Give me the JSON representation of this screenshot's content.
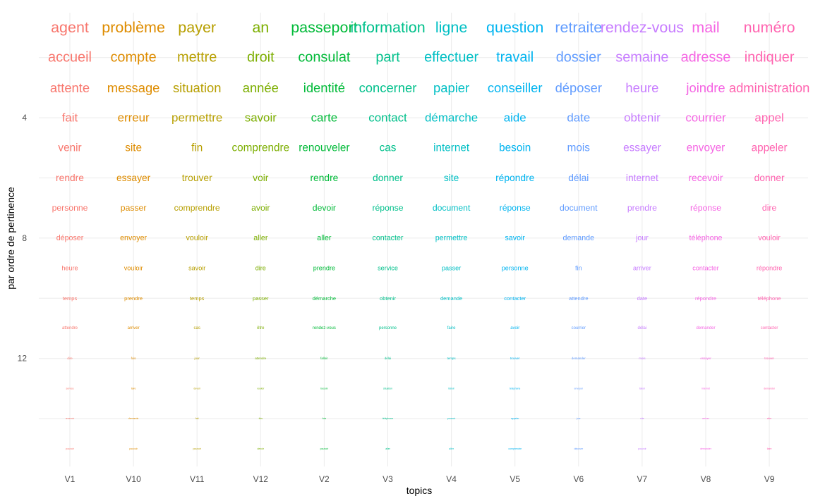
{
  "chart_data": {
    "type": "word-grid",
    "title": "",
    "xlabel": "topics",
    "ylabel": "par ordre de pertinence",
    "categories": [
      "V1",
      "V10",
      "V11",
      "V12",
      "V2",
      "V3",
      "V4",
      "V5",
      "V6",
      "V7",
      "V8",
      "V9"
    ],
    "y_ticks": [
      4,
      8,
      12
    ],
    "ylim": [
      0.5,
      15.5
    ],
    "grid": true,
    "colors": [
      "#F8766D",
      "#DE8C00",
      "#B79F00",
      "#7CAE00",
      "#00BA38",
      "#00C08B",
      "#00BFC4",
      "#00B4F0",
      "#619CFF",
      "#C77CFF",
      "#F564E3",
      "#FF64B0"
    ],
    "words": [
      [
        "agent",
        "accueil",
        "attente",
        "fait",
        "venir",
        "rendre",
        "personne",
        "déposer",
        "heure",
        "temps",
        "attendre",
        "dire",
        "service",
        "recevoir",
        "pouvoir"
      ],
      [
        "problème",
        "compte",
        "message",
        "erreur",
        "site",
        "essayer",
        "passer",
        "envoyer",
        "vouloir",
        "prendre",
        "arriver",
        "fois",
        "faire",
        "demande",
        "pouvoir"
      ],
      [
        "payer",
        "mettre",
        "situation",
        "permettre",
        "fin",
        "trouver",
        "comprendre",
        "vouloir",
        "savoir",
        "temps",
        "cas",
        "jour",
        "devoir",
        "fait",
        "pouvoir"
      ],
      [
        "an",
        "droit",
        "année",
        "savoir",
        "comprendre",
        "voir",
        "avoir",
        "aller",
        "dire",
        "passer",
        "être",
        "attendre",
        "vouloir",
        "fois",
        "devoir"
      ],
      [
        "passeport",
        "consulat",
        "identité",
        "carte",
        "renouveler",
        "rendre",
        "devoir",
        "aller",
        "prendre",
        "démarche",
        "rendez-vous",
        "falloir",
        "besoin",
        "fois",
        "pouvoir"
      ],
      [
        "information",
        "part",
        "concerner",
        "contact",
        "cas",
        "donner",
        "réponse",
        "contacter",
        "service",
        "obtenir",
        "personne",
        "délai",
        "situation",
        "téléphone",
        "aller"
      ],
      [
        "ligne",
        "effectuer",
        "papier",
        "démarche",
        "internet",
        "site",
        "document",
        "permettre",
        "passer",
        "demande",
        "faire",
        "temps",
        "falloir",
        "pouvoir",
        "aller"
      ],
      [
        "question",
        "travail",
        "conseiller",
        "aide",
        "besoin",
        "répondre",
        "réponse",
        "savoir",
        "personne",
        "contacter",
        "avoir",
        "trouver",
        "téléphone",
        "appeler",
        "comprendre"
      ],
      [
        "retraite",
        "dossier",
        "déposer",
        "date",
        "mois",
        "délai",
        "document",
        "demande",
        "fin",
        "attendre",
        "courrier",
        "demander",
        "envoyer",
        "jour",
        "déposer"
      ],
      [
        "rendez-vous",
        "semaine",
        "heure",
        "obtenir",
        "essayer",
        "internet",
        "prendre",
        "jour",
        "arriver",
        "date",
        "délai",
        "mois",
        "falloir",
        "site",
        "pouvoir"
      ],
      [
        "mail",
        "adresse",
        "joindre",
        "courrier",
        "envoyer",
        "recevoir",
        "réponse",
        "téléphone",
        "contacter",
        "répondre",
        "demander",
        "essayer",
        "internet",
        "arriver",
        "demander"
      ],
      [
        "numéro",
        "indiquer",
        "administration",
        "appel",
        "appeler",
        "donner",
        "dire",
        "vouloir",
        "répondre",
        "téléphone",
        "contacter",
        "trouver",
        "demander",
        "aller",
        "faire"
      ]
    ]
  }
}
